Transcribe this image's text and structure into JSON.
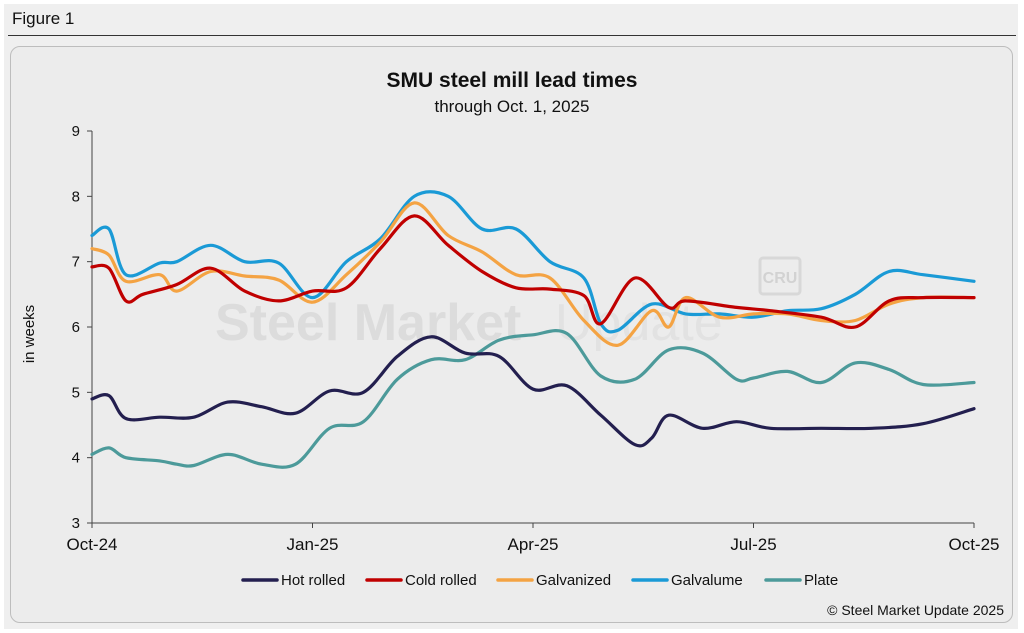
{
  "figure_label": "Figure 1",
  "chart_data": {
    "type": "line",
    "title": "SMU steel mill lead times",
    "subtitle": "through Oct. 1, 2025",
    "ylabel": "in weeks",
    "xlabel": "",
    "ylim": [
      3,
      9
    ],
    "yticks": [
      3,
      4,
      5,
      6,
      7,
      8,
      9
    ],
    "xlim": [
      0,
      52
    ],
    "xticks": [
      {
        "x": 0,
        "label": "Oct-24"
      },
      {
        "x": 13,
        "label": "Jan-25"
      },
      {
        "x": 26,
        "label": "Apr-25"
      },
      {
        "x": 39,
        "label": "Jul-25"
      },
      {
        "x": 52,
        "label": "Oct-25"
      }
    ],
    "grid": false,
    "legend_position": "bottom",
    "copyright": "© Steel Market Update 2025",
    "watermark": {
      "brand_bold": "Steel Market",
      "brand_light": "Update",
      "logo": "CRU"
    },
    "series": [
      {
        "name": "Hot rolled",
        "color": "#231f4f",
        "points": [
          [
            0,
            4.9
          ],
          [
            1,
            4.95
          ],
          [
            2,
            4.6
          ],
          [
            4,
            4.62
          ],
          [
            6,
            4.62
          ],
          [
            8,
            4.85
          ],
          [
            10,
            4.78
          ],
          [
            12,
            4.68
          ],
          [
            14,
            5.02
          ],
          [
            16,
            5.0
          ],
          [
            18,
            5.55
          ],
          [
            20,
            5.85
          ],
          [
            22,
            5.6
          ],
          [
            24,
            5.55
          ],
          [
            26,
            5.05
          ],
          [
            28,
            5.1
          ],
          [
            30,
            4.65
          ],
          [
            32,
            4.2
          ],
          [
            33,
            4.3
          ],
          [
            34,
            4.65
          ],
          [
            36,
            4.45
          ],
          [
            38,
            4.55
          ],
          [
            40,
            4.45
          ],
          [
            43,
            4.45
          ],
          [
            46,
            4.45
          ],
          [
            49,
            4.52
          ],
          [
            52,
            4.75
          ]
        ]
      },
      {
        "name": "Cold rolled",
        "color": "#c00000",
        "points": [
          [
            0,
            6.92
          ],
          [
            1,
            6.9
          ],
          [
            2,
            6.4
          ],
          [
            3,
            6.5
          ],
          [
            5,
            6.65
          ],
          [
            7,
            6.9
          ],
          [
            9,
            6.55
          ],
          [
            11,
            6.4
          ],
          [
            13,
            6.55
          ],
          [
            15,
            6.6
          ],
          [
            17,
            7.2
          ],
          [
            19,
            7.7
          ],
          [
            21,
            7.25
          ],
          [
            23,
            6.85
          ],
          [
            25,
            6.6
          ],
          [
            27,
            6.58
          ],
          [
            29,
            6.48
          ],
          [
            30,
            6.05
          ],
          [
            32,
            6.75
          ],
          [
            34,
            6.3
          ],
          [
            35,
            6.4
          ],
          [
            38,
            6.3
          ],
          [
            40,
            6.25
          ],
          [
            43,
            6.15
          ],
          [
            45,
            6.0
          ],
          [
            47,
            6.4
          ],
          [
            49,
            6.45
          ],
          [
            52,
            6.45
          ]
        ]
      },
      {
        "name": "Galvanized",
        "color": "#f4a343",
        "points": [
          [
            0,
            7.2
          ],
          [
            1,
            7.1
          ],
          [
            2,
            6.7
          ],
          [
            4,
            6.8
          ],
          [
            5,
            6.55
          ],
          [
            7,
            6.85
          ],
          [
            9,
            6.78
          ],
          [
            11,
            6.72
          ],
          [
            13,
            6.38
          ],
          [
            15,
            6.8
          ],
          [
            17,
            7.3
          ],
          [
            19,
            7.9
          ],
          [
            21,
            7.4
          ],
          [
            23,
            7.15
          ],
          [
            25,
            6.8
          ],
          [
            27,
            6.75
          ],
          [
            29,
            6.1
          ],
          [
            31,
            5.72
          ],
          [
            33,
            6.25
          ],
          [
            34,
            6.0
          ],
          [
            35,
            6.45
          ],
          [
            37,
            6.15
          ],
          [
            39,
            6.2
          ],
          [
            41,
            6.2
          ],
          [
            43,
            6.1
          ],
          [
            45,
            6.1
          ],
          [
            47,
            6.35
          ],
          [
            49,
            6.45
          ],
          [
            52,
            6.45
          ]
        ]
      },
      {
        "name": "Galvalume",
        "color": "#1a9ad6",
        "points": [
          [
            0,
            7.4
          ],
          [
            1,
            7.5
          ],
          [
            2,
            6.8
          ],
          [
            4,
            6.98
          ],
          [
            5,
            7.0
          ],
          [
            7,
            7.25
          ],
          [
            9,
            7.0
          ],
          [
            11,
            6.98
          ],
          [
            13,
            6.45
          ],
          [
            15,
            7.0
          ],
          [
            17,
            7.35
          ],
          [
            19,
            8.0
          ],
          [
            21,
            8.0
          ],
          [
            23,
            7.5
          ],
          [
            25,
            7.5
          ],
          [
            27,
            7.0
          ],
          [
            29,
            6.75
          ],
          [
            30,
            6.05
          ],
          [
            31,
            5.95
          ],
          [
            33,
            6.35
          ],
          [
            35,
            6.2
          ],
          [
            37,
            6.2
          ],
          [
            39,
            6.15
          ],
          [
            41,
            6.25
          ],
          [
            43,
            6.28
          ],
          [
            45,
            6.5
          ],
          [
            47,
            6.85
          ],
          [
            49,
            6.8
          ],
          [
            52,
            6.7
          ]
        ]
      },
      {
        "name": "Plate",
        "color": "#4c9a9a",
        "points": [
          [
            0,
            4.05
          ],
          [
            1,
            4.15
          ],
          [
            2,
            4.0
          ],
          [
            4,
            3.95
          ],
          [
            5,
            3.9
          ],
          [
            6,
            3.88
          ],
          [
            8,
            4.05
          ],
          [
            10,
            3.9
          ],
          [
            12,
            3.9
          ],
          [
            14,
            4.45
          ],
          [
            16,
            4.55
          ],
          [
            18,
            5.2
          ],
          [
            20,
            5.5
          ],
          [
            22,
            5.5
          ],
          [
            24,
            5.8
          ],
          [
            26,
            5.88
          ],
          [
            28,
            5.9
          ],
          [
            30,
            5.25
          ],
          [
            32,
            5.2
          ],
          [
            34,
            5.65
          ],
          [
            36,
            5.6
          ],
          [
            38,
            5.2
          ],
          [
            39,
            5.22
          ],
          [
            41,
            5.32
          ],
          [
            43,
            5.15
          ],
          [
            45,
            5.45
          ],
          [
            47,
            5.35
          ],
          [
            49,
            5.12
          ],
          [
            52,
            5.15
          ]
        ]
      }
    ]
  }
}
